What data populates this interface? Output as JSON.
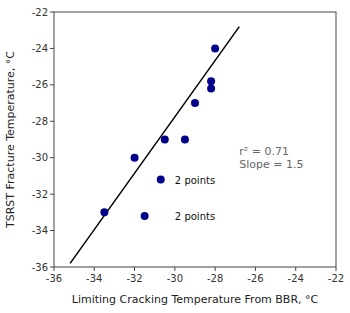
{
  "chart_data": {
    "type": "scatter",
    "xlabel": "Limiting Cracking Temperature From BBR, °C",
    "ylabel": "TSRST Fracture Temperature, °C",
    "series": [
      {
        "type": "scatter",
        "color": "#00008B",
        "x": [
          -33.5,
          -32.0,
          -30.5,
          -29.5,
          -29.0,
          -28.2,
          -28.2,
          -28.0,
          -30.7,
          -31.5
        ],
        "values": [
          -33.0,
          -30.0,
          -29.0,
          -29.0,
          -27.0,
          -26.2,
          -25.8,
          -24.0,
          -31.2,
          -33.2
        ]
      },
      {
        "type": "line",
        "color": "black",
        "x": [
          -35.2,
          -26.8
        ],
        "values": [
          -35.8,
          -22.8
        ]
      }
    ],
    "annotations": [
      {
        "text": "2 points",
        "x": -30.0,
        "y": -31.2
      },
      {
        "text": "2 points",
        "x": -30.0,
        "y": -33.2
      },
      {
        "text": "r² = 0.71\nSlope = 1.5",
        "x": -26.8,
        "y": -30.0
      }
    ],
    "xlim": [
      -36,
      -22
    ],
    "ylim": [
      -36,
      -22
    ],
    "xticks": [
      -36,
      -34,
      -32,
      -30,
      -28,
      -26,
      -24,
      -22
    ],
    "yticks": [
      -36,
      -34,
      -32,
      -30,
      -28,
      -26,
      -24,
      -22
    ],
    "grid": false
  }
}
